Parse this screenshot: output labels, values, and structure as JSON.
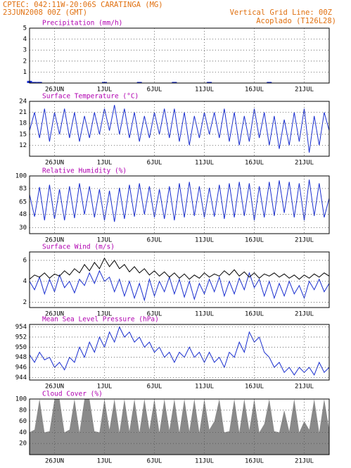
{
  "header": {
    "station": "CPTEC:  042:11W-20:06S  CARATINGA (MG)",
    "date": "23JUN2008 00Z (GMT)",
    "grid_note": "Vertical Grid Line: 00Z",
    "model": "Acoplado (T126L28)"
  },
  "chart_data": [
    {
      "type": "bar",
      "title": "Precipitation (mm/h)",
      "color": "#1a2fd0",
      "x": [
        0.5,
        1,
        1.5,
        2,
        2.5,
        3,
        3.5,
        4,
        4.5,
        5,
        5.5,
        6,
        6.5,
        7,
        7.5,
        8,
        8.5,
        9,
        9.5,
        10,
        10.5,
        11,
        11.5,
        12,
        12.5,
        13,
        13.5,
        14,
        14.5,
        15,
        15.5,
        16,
        16.5,
        17,
        17.5,
        18,
        18.5,
        19,
        19.5,
        20,
        20.5,
        21,
        21.5,
        22,
        22.5,
        23,
        23.5,
        24,
        24.5,
        25,
        25.5,
        26,
        26.5,
        27,
        27.5,
        28,
        28.5,
        29,
        29.5,
        30,
        30.5
      ],
      "values": [
        0.2,
        0.1,
        0.1,
        0,
        0,
        0,
        0,
        0,
        0,
        0,
        0,
        0,
        0,
        0,
        0,
        0.1,
        0,
        0,
        0,
        0,
        0,
        0,
        0.1,
        0,
        0,
        0,
        0,
        0,
        0,
        0.1,
        0,
        0,
        0,
        0,
        0,
        0,
        0.1,
        0,
        0,
        0,
        0,
        0,
        0,
        0,
        0,
        0,
        0,
        0,
        0.1,
        0,
        0,
        0,
        0,
        0,
        0,
        0,
        0,
        0,
        0,
        0,
        0
      ],
      "xlim": [
        0.5,
        30.5
      ],
      "xticks": [
        {
          "value": 3,
          "label": "26JUN"
        },
        {
          "value": 8,
          "label": "1JUL"
        },
        {
          "value": 13,
          "label": "6JUL"
        },
        {
          "value": 18,
          "label": "11JUL"
        },
        {
          "value": 23,
          "label": "16JUL"
        },
        {
          "value": 28,
          "label": "21JUL"
        }
      ],
      "ylim": [
        0,
        5
      ],
      "yticks": [
        1,
        2,
        3,
        4,
        5
      ],
      "grid": true
    },
    {
      "type": "line",
      "title": "Surface Temperature (°C)",
      "x": [
        0.5,
        1,
        1.5,
        2,
        2.5,
        3,
        3.5,
        4,
        4.5,
        5,
        5.5,
        6,
        6.5,
        7,
        7.5,
        8,
        8.5,
        9,
        9.5,
        10,
        10.5,
        11,
        11.5,
        12,
        12.5,
        13,
        13.5,
        14,
        14.5,
        15,
        15.5,
        16,
        16.5,
        17,
        17.5,
        18,
        18.5,
        19,
        19.5,
        20,
        20.5,
        21,
        21.5,
        22,
        22.5,
        23,
        23.5,
        24,
        24.5,
        25,
        25.5,
        26,
        26.5,
        27,
        27.5,
        28,
        28.5,
        29,
        29.5,
        30,
        30.5
      ],
      "series": [
        {
          "color": "#1a2fd0",
          "values": [
            16,
            21,
            14,
            22,
            13,
            21,
            15,
            22,
            14,
            21,
            13,
            20,
            14,
            21,
            15,
            22,
            16,
            23,
            15,
            22,
            14,
            21,
            13,
            20,
            14,
            21,
            15,
            22,
            14,
            22,
            13,
            21,
            12,
            20,
            14,
            21,
            15,
            21,
            14,
            22,
            13,
            21,
            12,
            20,
            13,
            22,
            14,
            21,
            12,
            20,
            11,
            19,
            12,
            21,
            13,
            22,
            10,
            20,
            12,
            21,
            16
          ]
        }
      ],
      "xlim": [
        0.5,
        30.5
      ],
      "xticks": [
        {
          "value": 3,
          "label": "26JUN"
        },
        {
          "value": 8,
          "label": "1JUL"
        },
        {
          "value": 13,
          "label": "6JUL"
        },
        {
          "value": 18,
          "label": "11JUL"
        },
        {
          "value": 23,
          "label": "16JUL"
        },
        {
          "value": 28,
          "label": "21JUL"
        }
      ],
      "ylim": [
        9,
        24
      ],
      "yticks": [
        12,
        15,
        18,
        21,
        24
      ],
      "grid": true
    },
    {
      "type": "line",
      "title": "Relative Humidity (%)",
      "x": [
        0.5,
        1,
        1.5,
        2,
        2.5,
        3,
        3.5,
        4,
        4.5,
        5,
        5.5,
        6,
        6.5,
        7,
        7.5,
        8,
        8.5,
        9,
        9.5,
        10,
        10.5,
        11,
        11.5,
        12,
        12.5,
        13,
        13.5,
        14,
        14.5,
        15,
        15.5,
        16,
        16.5,
        17,
        17.5,
        18,
        18.5,
        19,
        19.5,
        20,
        20.5,
        21,
        21.5,
        22,
        22.5,
        23,
        23.5,
        24,
        24.5,
        25,
        25.5,
        26,
        26.5,
        27,
        27.5,
        28,
        28.5,
        29,
        29.5,
        30,
        30.5
      ],
      "series": [
        {
          "color": "#1a2fd0",
          "values": [
            75,
            45,
            85,
            40,
            88,
            42,
            82,
            40,
            86,
            43,
            90,
            48,
            86,
            44,
            82,
            40,
            80,
            38,
            84,
            42,
            88,
            45,
            90,
            48,
            86,
            44,
            82,
            42,
            86,
            40,
            90,
            44,
            92,
            46,
            86,
            44,
            84,
            45,
            88,
            42,
            90,
            44,
            92,
            46,
            90,
            40,
            86,
            44,
            92,
            46,
            94,
            50,
            92,
            44,
            90,
            40,
            95,
            46,
            90,
            44,
            70
          ]
        }
      ],
      "xlim": [
        0.5,
        30.5
      ],
      "xticks": [
        {
          "value": 3,
          "label": "26JUN"
        },
        {
          "value": 8,
          "label": "1JUL"
        },
        {
          "value": 13,
          "label": "6JUL"
        },
        {
          "value": 18,
          "label": "11JUL"
        },
        {
          "value": 23,
          "label": "16JUL"
        },
        {
          "value": 28,
          "label": "21JUL"
        }
      ],
      "ylim": [
        22,
        100
      ],
      "yticks": [
        30,
        48,
        65,
        83,
        100
      ],
      "grid": true
    },
    {
      "type": "line",
      "title": "Surface Wind (m/s)",
      "x": [
        0.5,
        1,
        1.5,
        2,
        2.5,
        3,
        3.5,
        4,
        4.5,
        5,
        5.5,
        6,
        6.5,
        7,
        7.5,
        8,
        8.5,
        9,
        9.5,
        10,
        10.5,
        11,
        11.5,
        12,
        12.5,
        13,
        13.5,
        14,
        14.5,
        15,
        15.5,
        16,
        16.5,
        17,
        17.5,
        18,
        18.5,
        19,
        19.5,
        20,
        20.5,
        21,
        21.5,
        22,
        22.5,
        23,
        23.5,
        24,
        24.5,
        25,
        25.5,
        26,
        26.5,
        27,
        27.5,
        28,
        28.5,
        29,
        29.5,
        30,
        30.5
      ],
      "series": [
        {
          "color": "#1a2fd0",
          "values": [
            4.0,
            3.2,
            4.4,
            2.8,
            4.2,
            3.0,
            4.6,
            3.4,
            4.0,
            2.9,
            4.2,
            3.6,
            4.8,
            3.8,
            5.0,
            4.0,
            4.4,
            3.0,
            4.2,
            2.6,
            4.0,
            2.4,
            3.8,
            2.2,
            4.2,
            2.6,
            4.0,
            3.0,
            4.4,
            2.8,
            4.2,
            2.5,
            4.0,
            2.3,
            3.8,
            2.8,
            4.2,
            3.0,
            4.4,
            2.6,
            4.0,
            2.8,
            4.3,
            3.2,
            4.8,
            3.4,
            4.2,
            2.6,
            4.0,
            2.4,
            3.8,
            2.6,
            4.0,
            2.8,
            3.6,
            2.4,
            4.0,
            3.2,
            4.2,
            3.0,
            3.8
          ]
        },
        {
          "color": "#000000",
          "values": [
            4.2,
            4.6,
            4.4,
            4.8,
            4.3,
            4.7,
            4.5,
            5.0,
            4.6,
            5.2,
            4.8,
            5.6,
            5.0,
            5.8,
            5.2,
            6.2,
            5.4,
            6.0,
            5.2,
            5.6,
            4.9,
            5.4,
            4.8,
            5.2,
            4.6,
            5.0,
            4.5,
            4.9,
            4.4,
            4.8,
            4.3,
            4.7,
            4.2,
            4.6,
            4.3,
            4.8,
            4.4,
            4.7,
            4.5,
            5.0,
            4.6,
            5.1,
            4.5,
            4.9,
            4.4,
            4.8,
            4.3,
            4.7,
            4.5,
            4.8,
            4.4,
            4.7,
            4.3,
            4.6,
            4.2,
            4.6,
            4.3,
            4.7,
            4.4,
            4.8,
            4.5
          ]
        }
      ],
      "xlim": [
        0.5,
        30.5
      ],
      "xticks": [
        {
          "value": 3,
          "label": "26JUN"
        },
        {
          "value": 8,
          "label": "1JUL"
        },
        {
          "value": 13,
          "label": "6JUL"
        },
        {
          "value": 18,
          "label": "11JUL"
        },
        {
          "value": 23,
          "label": "16JUL"
        },
        {
          "value": 28,
          "label": "21JUL"
        }
      ],
      "ylim": [
        1.5,
        6.8
      ],
      "yticks": [
        2,
        4,
        6
      ],
      "grid": true
    },
    {
      "type": "line",
      "title": "Mean Sea Level Pressure (hPa)",
      "x": [
        0.5,
        1,
        1.5,
        2,
        2.5,
        3,
        3.5,
        4,
        4.5,
        5,
        5.5,
        6,
        6.5,
        7,
        7.5,
        8,
        8.5,
        9,
        9.5,
        10,
        10.5,
        11,
        11.5,
        12,
        12.5,
        13,
        13.5,
        14,
        14.5,
        15,
        15.5,
        16,
        16.5,
        17,
        17.5,
        18,
        18.5,
        19,
        19.5,
        20,
        20.5,
        21,
        21.5,
        22,
        22.5,
        23,
        23.5,
        24,
        24.5,
        25,
        25.5,
        26,
        26.5,
        27,
        27.5,
        28,
        28.5,
        29,
        29.5,
        30,
        30.5
      ],
      "series": [
        {
          "color": "#1a2fd0",
          "values": [
            948.5,
            947,
            949,
            947.5,
            948,
            946,
            947,
            945.5,
            948,
            947,
            950,
            948,
            951,
            949,
            952,
            950,
            953,
            951,
            954,
            952,
            953,
            951,
            952,
            950,
            951,
            949,
            950,
            948,
            949,
            947,
            949,
            948,
            950,
            948,
            949,
            947,
            949,
            947,
            948,
            946,
            949,
            948,
            951,
            949,
            953,
            951,
            952,
            949,
            948,
            946,
            947,
            945,
            946,
            944.5,
            946,
            945,
            946,
            944.5,
            947,
            945,
            946
          ]
        }
      ],
      "xlim": [
        0.5,
        30.5
      ],
      "xticks": [
        {
          "value": 3,
          "label": "26JUN"
        },
        {
          "value": 8,
          "label": "1JUL"
        },
        {
          "value": 13,
          "label": "6JUL"
        },
        {
          "value": 18,
          "label": "11JUL"
        },
        {
          "value": 23,
          "label": "16JUL"
        },
        {
          "value": 28,
          "label": "21JUL"
        }
      ],
      "ylim": [
        943.5,
        954.5
      ],
      "yticks": [
        944,
        946,
        948,
        950,
        952,
        954
      ],
      "grid": true
    },
    {
      "type": "area",
      "title": "Cloud Cover (%)",
      "x": [
        0.5,
        1,
        1.5,
        2,
        2.5,
        3,
        3.5,
        4,
        4.5,
        5,
        5.5,
        6,
        6.5,
        7,
        7.5,
        8,
        8.5,
        9,
        9.5,
        10,
        10.5,
        11,
        11.5,
        12,
        12.5,
        13,
        13.5,
        14,
        14.5,
        15,
        15.5,
        16,
        16.5,
        17,
        17.5,
        18,
        18.5,
        19,
        19.5,
        20,
        20.5,
        21,
        21.5,
        22,
        22.5,
        23,
        23.5,
        24,
        24.5,
        25,
        25.5,
        26,
        26.5,
        27,
        27.5,
        28,
        28.5,
        29,
        29.5,
        30,
        30.5
      ],
      "series": [
        {
          "color": "#8a8a8a",
          "values": [
            40,
            45,
            100,
            40,
            42,
            100,
            100,
            40,
            45,
            100,
            40,
            100,
            100,
            42,
            40,
            100,
            45,
            100,
            40,
            100,
            42,
            100,
            40,
            100,
            45,
            100,
            40,
            100,
            44,
            100,
            40,
            100,
            42,
            100,
            40,
            100,
            45,
            60,
            100,
            40,
            42,
            100,
            40,
            100,
            44,
            100,
            40,
            55,
            100,
            42,
            40,
            80,
            42,
            100,
            40,
            60,
            45,
            100,
            40,
            100,
            45
          ]
        }
      ],
      "xlim": [
        0.5,
        30.5
      ],
      "xticks": [
        {
          "value": 3,
          "label": "26JUN"
        },
        {
          "value": 8,
          "label": "1JUL"
        },
        {
          "value": 13,
          "label": "6JUL"
        },
        {
          "value": 18,
          "label": "11JUL"
        },
        {
          "value": 23,
          "label": "16JUL"
        },
        {
          "value": 28,
          "label": "21JUL"
        }
      ],
      "ylim": [
        0,
        100
      ],
      "yticks": [
        20,
        40,
        60,
        80,
        100
      ],
      "grid": true
    }
  ]
}
